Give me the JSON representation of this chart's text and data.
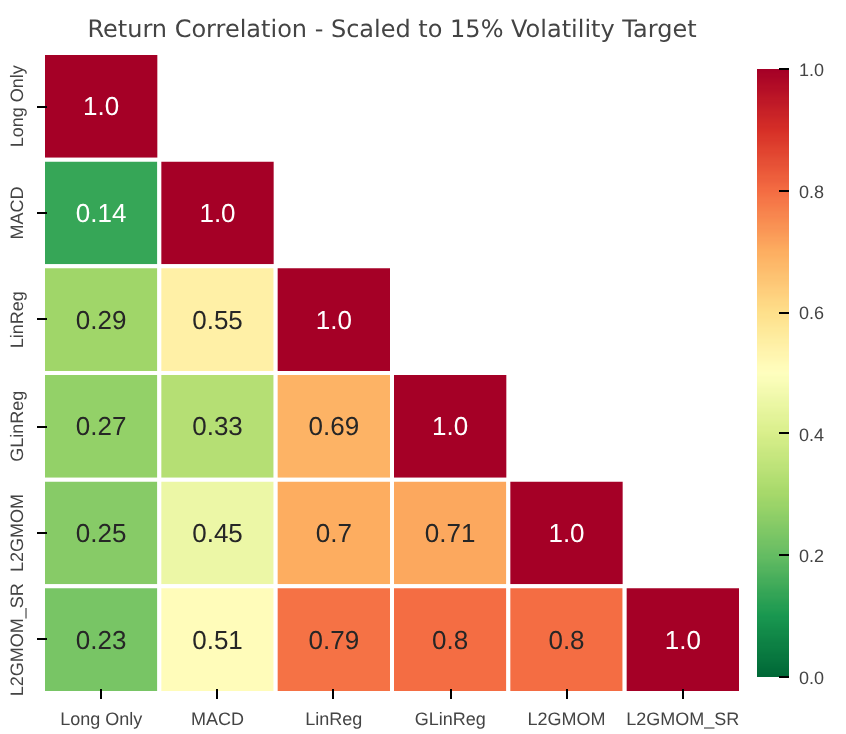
{
  "chart_data": {
    "type": "heatmap",
    "title": "Return Correlation - Scaled to 15% Volatility Target",
    "categories": [
      "Long Only",
      "MACD",
      "LinReg",
      "GLinReg",
      "L2GMOM",
      "L2GMOM_SR"
    ],
    "y_categories": [
      "Long Only",
      "MACD",
      "LinReg",
      "GLinReg",
      "L2GMOM",
      "L2GMOM_SR"
    ],
    "cells": [
      [
        1.0,
        null,
        null,
        null,
        null,
        null
      ],
      [
        0.14,
        1.0,
        null,
        null,
        null,
        null
      ],
      [
        0.29,
        0.55,
        1.0,
        null,
        null,
        null
      ],
      [
        0.27,
        0.33,
        0.69,
        1.0,
        null,
        null
      ],
      [
        0.25,
        0.45,
        0.7,
        0.71,
        1.0,
        null
      ],
      [
        0.23,
        0.51,
        0.79,
        0.8,
        0.8,
        1.0
      ]
    ],
    "cell_labels": [
      [
        "1.0",
        null,
        null,
        null,
        null,
        null
      ],
      [
        "0.14",
        "1.0",
        null,
        null,
        null,
        null
      ],
      [
        "0.29",
        "0.55",
        "1.0",
        null,
        null,
        null
      ],
      [
        "0.27",
        "0.33",
        "0.69",
        "1.0",
        null,
        null
      ],
      [
        "0.25",
        "0.45",
        "0.7",
        "0.71",
        "1.0",
        null
      ],
      [
        "0.23",
        "0.51",
        "0.79",
        "0.8",
        "0.8",
        "1.0"
      ]
    ],
    "clim": [
      0,
      1
    ],
    "cticks": [
      {
        "value": 0,
        "label": "0.0"
      },
      {
        "value": 0.2,
        "label": "0.2"
      },
      {
        "value": 0.4,
        "label": "0.4"
      },
      {
        "value": 0.6,
        "label": "0.6"
      },
      {
        "value": 0.8,
        "label": "0.8"
      },
      {
        "value": 1,
        "label": "1.0"
      }
    ]
  }
}
